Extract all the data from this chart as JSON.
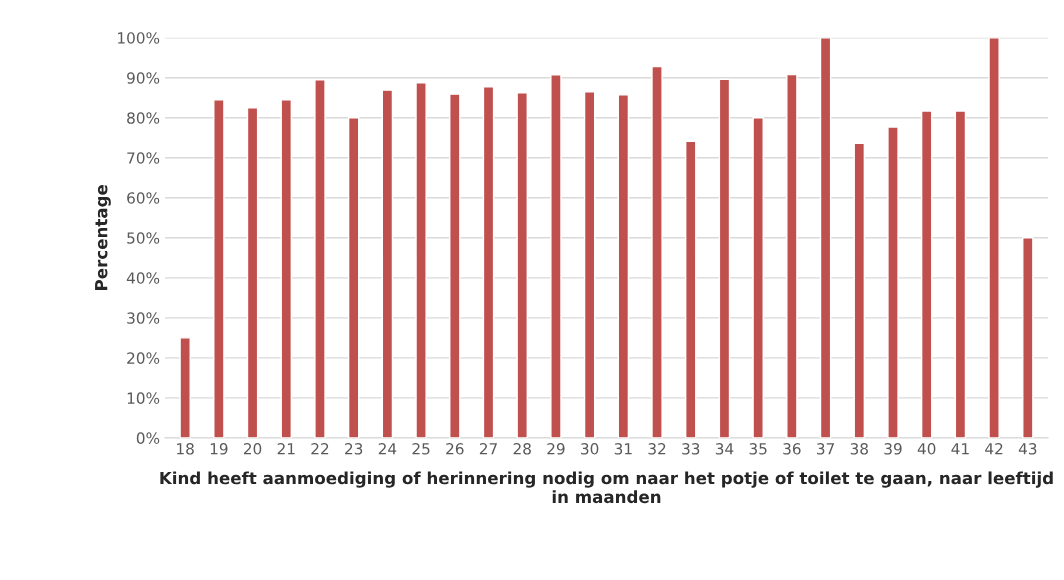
{
  "chart_data": {
    "type": "bar",
    "xlabel": "Kind heeft aanmoediging of herinnering nodig om naar het potje of toilet te gaan, naar leeftijd in maanden",
    "ylabel": "Percentage",
    "categories": [
      "18",
      "19",
      "20",
      "21",
      "22",
      "23",
      "24",
      "25",
      "26",
      "27",
      "28",
      "29",
      "30",
      "31",
      "32",
      "33",
      "34",
      "35",
      "36",
      "37",
      "38",
      "39",
      "40",
      "41",
      "42",
      "43"
    ],
    "values": [
      25,
      84.5,
      82.5,
      84.5,
      89.5,
      80,
      86.9,
      88.7,
      85.9,
      87.7,
      86.2,
      90.7,
      86.5,
      85.7,
      92.8,
      74.1,
      89.6,
      80,
      90.8,
      100,
      73.6,
      77.7,
      81.7,
      81.7,
      100,
      50
    ],
    "color": "#c0504d",
    "ylim": [
      0,
      100
    ],
    "yticks": [
      {
        "value": 0,
        "label": "0%"
      },
      {
        "value": 10,
        "label": "10%"
      },
      {
        "value": 20,
        "label": "20%"
      },
      {
        "value": 30,
        "label": "30%"
      },
      {
        "value": 40,
        "label": "40%"
      },
      {
        "value": 50,
        "label": "50%"
      },
      {
        "value": 60,
        "label": "60%"
      },
      {
        "value": 70,
        "label": "70%"
      },
      {
        "value": 80,
        "label": "80%"
      },
      {
        "value": 90,
        "label": "90%"
      },
      {
        "value": 100,
        "label": "100%"
      }
    ],
    "grid": "y"
  }
}
